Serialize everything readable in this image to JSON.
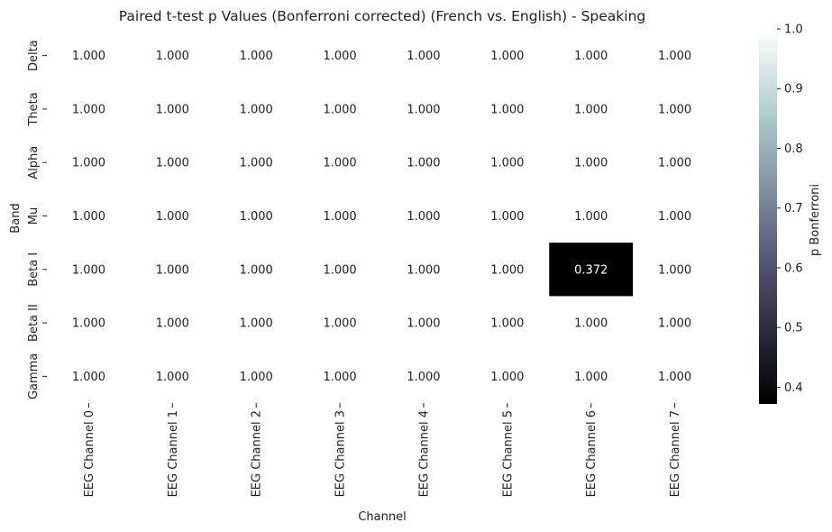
{
  "chart_data": {
    "type": "heatmap",
    "title": "Paired t-test p Values (Bonferroni corrected) (French vs. English) - Speaking",
    "xlabel": "Channel",
    "ylabel": "Band",
    "x_categories": [
      "EEG Channel 0",
      "EEG Channel 1",
      "EEG Channel 2",
      "EEG Channel 3",
      "EEG Channel 4",
      "EEG Channel 5",
      "EEG Channel 6",
      "EEG Channel 7"
    ],
    "y_categories": [
      "Delta",
      "Theta",
      "Alpha",
      "Mu",
      "Beta I",
      "Beta II",
      "Gamma"
    ],
    "values": [
      [
        1.0,
        1.0,
        1.0,
        1.0,
        1.0,
        1.0,
        1.0,
        1.0
      ],
      [
        1.0,
        1.0,
        1.0,
        1.0,
        1.0,
        1.0,
        1.0,
        1.0
      ],
      [
        1.0,
        1.0,
        1.0,
        1.0,
        1.0,
        1.0,
        1.0,
        1.0
      ],
      [
        1.0,
        1.0,
        1.0,
        1.0,
        1.0,
        1.0,
        1.0,
        1.0
      ],
      [
        1.0,
        1.0,
        1.0,
        1.0,
        1.0,
        1.0,
        0.372,
        1.0
      ],
      [
        1.0,
        1.0,
        1.0,
        1.0,
        1.0,
        1.0,
        1.0,
        1.0
      ],
      [
        1.0,
        1.0,
        1.0,
        1.0,
        1.0,
        1.0,
        1.0,
        1.0
      ]
    ],
    "value_format_decimals": 3,
    "colormap": "bone",
    "colorbar": {
      "label": "p Bonferroni",
      "range": [
        0.372,
        1.0
      ],
      "ticks": [
        0.4,
        0.5,
        0.6,
        0.7,
        0.8,
        0.9,
        1.0
      ],
      "tick_labels": [
        "0.4",
        "0.5",
        "0.6",
        "0.7",
        "0.8",
        "0.9",
        "1.0"
      ]
    },
    "colors": {
      "text_on_dark": "#ffffff",
      "text_on_light": "#222222"
    }
  }
}
